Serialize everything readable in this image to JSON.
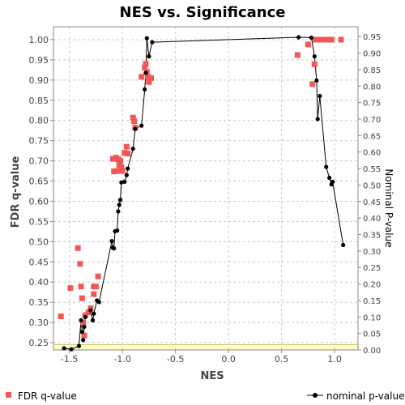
{
  "chart_data": {
    "type": "scatter",
    "title": "NES vs. Significance",
    "xlabel": "NES",
    "ylabel": "FDR q-value",
    "y2label": "Nominal P-value",
    "xlim": [
      -1.65,
      1.22
    ],
    "ylim": [
      0.232,
      1.032
    ],
    "y2lim": [
      0.0,
      0.98
    ],
    "x_ticks": [
      "-1.5",
      "-1.0",
      "-0.5",
      "0.0",
      "0.5",
      "1.0"
    ],
    "x_tick_values": [
      -1.5,
      -1.0,
      -0.5,
      0.0,
      0.5,
      1.0
    ],
    "y_ticks": [
      "0.25",
      "0.30",
      "0.35",
      "0.40",
      "0.45",
      "0.50",
      "0.55",
      "0.60",
      "0.65",
      "0.70",
      "0.75",
      "0.80",
      "0.85",
      "0.90",
      "0.95",
      "1.00"
    ],
    "y_tick_values": [
      0.25,
      0.3,
      0.35,
      0.4,
      0.45,
      0.5,
      0.55,
      0.6,
      0.65,
      0.7,
      0.75,
      0.8,
      0.85,
      0.9,
      0.95,
      1.0
    ],
    "y2_ticks": [
      "0.00",
      "0.05",
      "0.10",
      "0.15",
      "0.20",
      "0.25",
      "0.30",
      "0.35",
      "0.40",
      "0.45",
      "0.50",
      "0.55",
      "0.60",
      "0.65",
      "0.70",
      "0.75",
      "0.80",
      "0.85",
      "0.90",
      "0.95"
    ],
    "y2_tick_values": [
      0.0,
      0.05,
      0.1,
      0.15,
      0.2,
      0.25,
      0.3,
      0.35,
      0.4,
      0.45,
      0.5,
      0.55,
      0.6,
      0.65,
      0.7,
      0.75,
      0.8,
      0.85,
      0.9,
      0.95
    ],
    "grid": true,
    "significance_band": [
      0.232,
      0.245
    ],
    "legend_position": "bottom",
    "colors": {
      "fdr": "#f25757",
      "nominal": "#000000",
      "grid": "#c8c8c8",
      "band": "#ffffc0",
      "band_border": "#aaa040"
    },
    "series": [
      {
        "name": "FDR q-value",
        "marker": "square",
        "points": [
          [
            -1.58,
            0.315
          ],
          [
            -1.49,
            0.385
          ],
          [
            -1.42,
            0.484
          ],
          [
            -1.4,
            0.445
          ],
          [
            -1.39,
            0.389
          ],
          [
            -1.38,
            0.36
          ],
          [
            -1.37,
            0.3
          ],
          [
            -1.36,
            0.268
          ],
          [
            -1.35,
            0.318
          ],
          [
            -1.32,
            0.325
          ],
          [
            -1.3,
            0.335
          ],
          [
            -1.27,
            0.389
          ],
          [
            -1.27,
            0.37
          ],
          [
            -1.25,
            0.389
          ],
          [
            -1.23,
            0.414
          ],
          [
            -1.09,
            0.705
          ],
          [
            -1.08,
            0.674
          ],
          [
            -1.06,
            0.708
          ],
          [
            -1.05,
            0.675
          ],
          [
            -1.04,
            0.704
          ],
          [
            -1.03,
            0.69
          ],
          [
            -1.02,
            0.7
          ],
          [
            -1.01,
            0.685
          ],
          [
            -1.0,
            0.675
          ],
          [
            -0.98,
            0.72
          ],
          [
            -0.96,
            0.735
          ],
          [
            -0.95,
            0.718
          ],
          [
            -0.9,
            0.807
          ],
          [
            -0.89,
            0.798
          ],
          [
            -0.88,
            0.782
          ],
          [
            -0.82,
            0.908
          ],
          [
            -0.79,
            0.931
          ],
          [
            -0.78,
            0.94
          ],
          [
            -0.77,
            0.92
          ],
          [
            -0.76,
            0.908
          ],
          [
            -0.75,
            0.895
          ],
          [
            -0.73,
            0.905
          ],
          [
            0.65,
            0.962
          ],
          [
            0.75,
            0.988
          ],
          [
            0.79,
            0.89
          ],
          [
            0.81,
            0.939
          ],
          [
            0.82,
            1.0
          ],
          [
            0.84,
            1.0
          ],
          [
            0.89,
            1.0
          ],
          [
            0.92,
            1.0
          ],
          [
            0.94,
            1.0
          ],
          [
            0.97,
            1.0
          ],
          [
            1.06,
            1.0
          ]
        ]
      },
      {
        "name": "nominal p-value",
        "marker": "circle-line",
        "points": [
          [
            -1.55,
            0.005
          ],
          [
            -1.48,
            0.002
          ],
          [
            -1.41,
            0.012
          ],
          [
            -1.39,
            0.09
          ],
          [
            -1.38,
            0.055
          ],
          [
            -1.37,
            0.03
          ],
          [
            -1.36,
            0.07
          ],
          [
            -1.35,
            0.1
          ],
          [
            -1.3,
            0.12
          ],
          [
            -1.28,
            0.09
          ],
          [
            -1.27,
            0.11
          ],
          [
            -1.24,
            0.15
          ],
          [
            -1.22,
            0.145
          ],
          [
            -1.1,
            0.33
          ],
          [
            -1.09,
            0.31
          ],
          [
            -1.08,
            0.308
          ],
          [
            -1.07,
            0.36
          ],
          [
            -1.05,
            0.362
          ],
          [
            -1.04,
            0.42
          ],
          [
            -1.03,
            0.44
          ],
          [
            -1.02,
            0.455
          ],
          [
            -1.01,
            0.508
          ],
          [
            -0.98,
            0.51
          ],
          [
            -0.96,
            0.53
          ],
          [
            -0.95,
            0.55
          ],
          [
            -0.9,
            0.61
          ],
          [
            -0.88,
            0.67
          ],
          [
            -0.82,
            0.68
          ],
          [
            -0.79,
            0.79
          ],
          [
            -0.78,
            0.84
          ],
          [
            -0.77,
            0.945
          ],
          [
            -0.75,
            0.89
          ],
          [
            -0.72,
            0.933
          ],
          [
            0.66,
            0.948
          ],
          [
            0.78,
            0.947
          ],
          [
            0.81,
            0.89
          ],
          [
            0.83,
            0.817
          ],
          [
            0.84,
            0.7
          ],
          [
            0.86,
            0.77
          ],
          [
            0.92,
            0.555
          ],
          [
            0.95,
            0.522
          ],
          [
            0.97,
            0.502
          ],
          [
            0.98,
            0.51
          ],
          [
            1.08,
            0.318
          ]
        ]
      }
    ]
  }
}
